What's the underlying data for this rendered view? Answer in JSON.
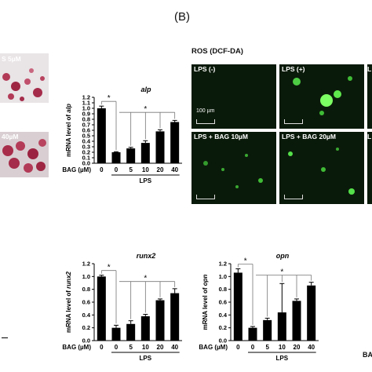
{
  "panel_b_label": "(B)",
  "left_micro": {
    "label_top": "S 5µM",
    "label_bottom": "40µM"
  },
  "ros": {
    "title": "ROS (DCF-DA)",
    "panels": [
      "LPS (-)",
      "LPS (+)",
      "LPS + BAG 10µM",
      "LPS + BAG 20µM"
    ],
    "partial_labels": [
      "L",
      "L"
    ],
    "scale_text": "100 µm"
  },
  "edge_bottom_right": "BA",
  "chart_data": [
    {
      "type": "bar",
      "title": "alp",
      "ylabel_prefix": "mRNA level of ",
      "ylabel_gene": "alp",
      "categories": [
        "0",
        "0",
        "5",
        "10",
        "20",
        "40"
      ],
      "x_group_label": "BAG (µM)",
      "x_sublabel": "LPS",
      "values": [
        1.0,
        0.2,
        0.27,
        0.37,
        0.58,
        0.75
      ],
      "errors": [
        0.04,
        0.01,
        0.02,
        0.04,
        0.03,
        0.03
      ],
      "yticks": [
        "0.0",
        "0.1",
        "0.2",
        "0.3",
        "0.4",
        "0.5",
        "0.6",
        "0.7",
        "0.8",
        "0.9",
        "1.0",
        "1.1",
        "1.2"
      ],
      "ylim": [
        0,
        1.2
      ],
      "significance": [
        "*",
        "*"
      ]
    },
    {
      "type": "bar",
      "title": "runx2",
      "ylabel_prefix": "mRNA level of ",
      "ylabel_gene": "runx2",
      "categories": [
        "0",
        "0",
        "5",
        "10",
        "20",
        "40"
      ],
      "x_group_label": "BAG (µM)",
      "x_sublabel": "LPS",
      "values": [
        1.0,
        0.2,
        0.26,
        0.38,
        0.63,
        0.74
      ],
      "errors": [
        0.02,
        0.04,
        0.05,
        0.03,
        0.02,
        0.07
      ],
      "yticks": [
        "0.0",
        "0.2",
        "0.4",
        "0.6",
        "0.8",
        "1.0",
        "1.2"
      ],
      "ylim": [
        0,
        1.2
      ],
      "significance": [
        "*",
        "*"
      ]
    },
    {
      "type": "bar",
      "title": "opn",
      "ylabel_prefix": "mRNA level of ",
      "ylabel_gene": "opn",
      "categories": [
        "0",
        "0",
        "5",
        "10",
        "20",
        "40"
      ],
      "x_group_label": "BAG (µM)",
      "x_sublabel": "LPS",
      "values": [
        1.06,
        0.2,
        0.32,
        0.44,
        0.62,
        0.86
      ],
      "errors": [
        0.06,
        0.02,
        0.03,
        0.45,
        0.03,
        0.05
      ],
      "yticks": [
        "0.0",
        "0.2",
        "0.4",
        "0.6",
        "0.8",
        "1.0",
        "1.2"
      ],
      "ylim": [
        0,
        1.2
      ],
      "significance": [
        "*",
        "*"
      ]
    }
  ]
}
